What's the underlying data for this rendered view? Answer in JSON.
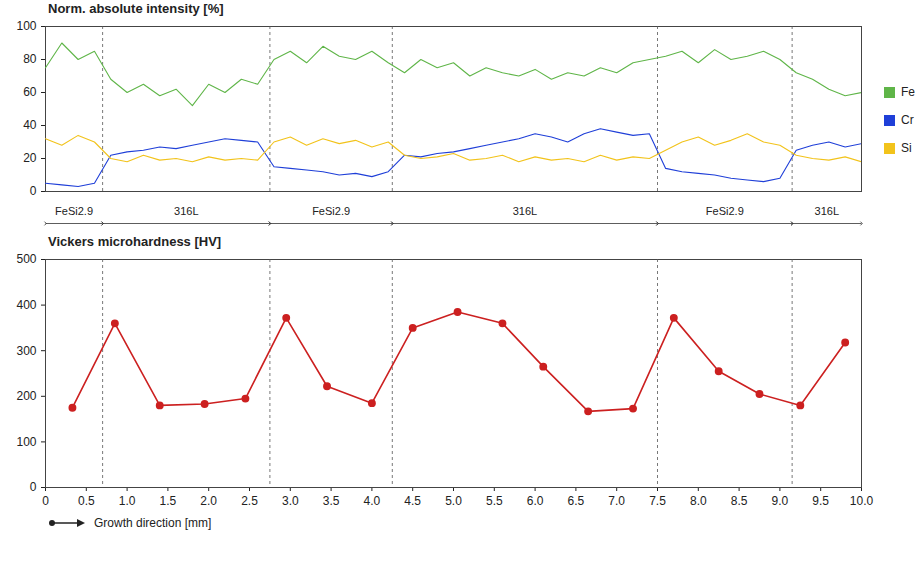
{
  "chart_data": [
    {
      "type": "line",
      "title": "Norm. absolute intensity [%]",
      "x": [
        0,
        0.2,
        0.4,
        0.6,
        0.8,
        1.0,
        1.2,
        1.4,
        1.6,
        1.8,
        2.0,
        2.2,
        2.4,
        2.6,
        2.8,
        3.0,
        3.2,
        3.4,
        3.6,
        3.8,
        4.0,
        4.2,
        4.4,
        4.6,
        4.8,
        5.0,
        5.2,
        5.4,
        5.6,
        5.8,
        6.0,
        6.2,
        6.4,
        6.6,
        6.8,
        7.0,
        7.2,
        7.4,
        7.6,
        7.8,
        8.0,
        8.2,
        8.4,
        8.6,
        8.8,
        9.0,
        9.2,
        9.4,
        9.6,
        9.8,
        10.0
      ],
      "series": [
        {
          "name": "Fe",
          "color": "#5fb548",
          "values": [
            75,
            90,
            80,
            85,
            68,
            60,
            65,
            58,
            62,
            52,
            65,
            60,
            68,
            65,
            80,
            85,
            78,
            88,
            82,
            80,
            85,
            78,
            72,
            80,
            75,
            78,
            70,
            75,
            72,
            70,
            74,
            68,
            72,
            70,
            75,
            72,
            78,
            80,
            82,
            85,
            78,
            86,
            80,
            82,
            85,
            80,
            72,
            68,
            62,
            58,
            60
          ]
        },
        {
          "name": "Cr",
          "color": "#1f3fd8",
          "values": [
            5,
            4,
            3,
            5,
            22,
            24,
            25,
            27,
            26,
            28,
            30,
            32,
            31,
            30,
            15,
            14,
            13,
            12,
            10,
            11,
            9,
            12,
            22,
            21,
            23,
            24,
            26,
            28,
            30,
            32,
            35,
            33,
            30,
            35,
            38,
            36,
            34,
            35,
            14,
            12,
            11,
            10,
            8,
            7,
            6,
            8,
            25,
            28,
            30,
            27,
            29
          ]
        },
        {
          "name": "Si",
          "color": "#f2c31b",
          "values": [
            32,
            28,
            34,
            30,
            20,
            18,
            22,
            19,
            20,
            18,
            21,
            19,
            20,
            19,
            30,
            33,
            28,
            32,
            29,
            31,
            27,
            30,
            22,
            20,
            21,
            23,
            19,
            20,
            22,
            18,
            21,
            19,
            20,
            18,
            22,
            19,
            21,
            20,
            25,
            30,
            33,
            28,
            31,
            35,
            30,
            28,
            22,
            20,
            19,
            21,
            18
          ]
        }
      ],
      "xlim": [
        0,
        10
      ],
      "ylim": [
        0,
        100
      ],
      "yticks": [
        0,
        20,
        40,
        60,
        80,
        100
      ],
      "tick_labels": "y",
      "legend": "right",
      "regions": [
        {
          "label": "FeSi2.9",
          "start": 0,
          "end": 0.7
        },
        {
          "label": "316L",
          "start": 0.7,
          "end": 2.75
        },
        {
          "label": "FeSi2.9",
          "start": 2.75,
          "end": 4.25
        },
        {
          "label": "316L",
          "start": 4.25,
          "end": 7.5
        },
        {
          "label": "FeSi2.9",
          "start": 7.5,
          "end": 9.15
        },
        {
          "label": "316L",
          "start": 9.15,
          "end": 10
        }
      ]
    },
    {
      "type": "line",
      "title": "Vickers microhardness [HV]",
      "x_label": "Growth direction [mm]",
      "x": [
        0.33,
        0.85,
        1.4,
        1.95,
        2.45,
        2.95,
        3.45,
        4.0,
        4.5,
        5.05,
        5.6,
        6.1,
        6.65,
        7.2,
        7.7,
        8.25,
        8.75,
        9.25,
        9.8
      ],
      "values": [
        175,
        360,
        180,
        183,
        195,
        372,
        222,
        185,
        350,
        385,
        360,
        265,
        167,
        173,
        372,
        255,
        205,
        180,
        318
      ],
      "color": "#cc2020",
      "marker": "circle",
      "xlim": [
        0,
        10
      ],
      "xticks": [
        0,
        0.5,
        {
          "value": 1,
          "label": "1.0"
        },
        1.5,
        {
          "value": 2,
          "label": "2.0"
        },
        2.5,
        {
          "value": 3,
          "label": "3.0"
        },
        3.5,
        {
          "value": 4,
          "label": "4.0"
        },
        4.5,
        {
          "value": 5,
          "label": "5.0"
        },
        5.5,
        {
          "value": 6,
          "label": "6.0"
        },
        6.5,
        {
          "value": 7,
          "label": "7.0"
        },
        7.5,
        {
          "value": 8,
          "label": "8.0"
        },
        8.5,
        {
          "value": 9,
          "label": "9.0"
        },
        9.5,
        {
          "value": 10,
          "label": "10.0"
        }
      ],
      "ylim": [
        0,
        500
      ],
      "yticks": [
        0,
        100,
        200,
        300,
        400,
        500
      ],
      "boundaries": [
        0.7,
        2.75,
        4.25,
        7.5,
        9.15
      ]
    }
  ]
}
